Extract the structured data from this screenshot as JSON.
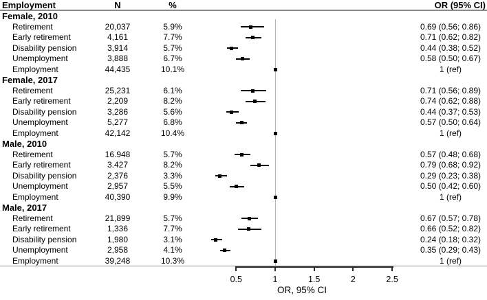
{
  "columns": {
    "employment": "Employment",
    "n": "N",
    "percent": "%",
    "or_ci": "OR (95% CI)"
  },
  "axis": {
    "label": "OR, 95% CI",
    "reference_value": 1,
    "ticks": [
      {
        "value": 0.5,
        "label": "0.5"
      },
      {
        "value": 1,
        "label": "1"
      },
      {
        "value": 1.5,
        "label": "1.5"
      },
      {
        "value": 2,
        "label": "2"
      },
      {
        "value": 2.5,
        "label": "2.5"
      }
    ]
  },
  "chart_data": {
    "type": "scatter",
    "variant": "forest-plot",
    "title": "",
    "xlabel": "OR, 95% CI",
    "xticks": [
      0.5,
      1,
      1.5,
      2,
      2.5
    ],
    "xlim": [
      0.15,
      2.7
    ],
    "reference_line": 1,
    "legend": "none",
    "grid": false,
    "columns": [
      "Employment",
      "N",
      "%",
      "OR (95% CI)"
    ],
    "groups": [
      {
        "label": "Female, 2010",
        "rows": [
          {
            "label": "Retirement",
            "n": "20,037",
            "pct": "5.9%",
            "or": 0.69,
            "ci_low": 0.56,
            "ci_high": 0.86,
            "or_text": "0.69 (0.56; 0.86)"
          },
          {
            "label": "Early retirement",
            "n": "4,161",
            "pct": "7.7%",
            "or": 0.71,
            "ci_low": 0.62,
            "ci_high": 0.82,
            "or_text": "0.71 (0.62; 0.82)"
          },
          {
            "label": "Disability pension",
            "n": "3,914",
            "pct": "5.7%",
            "or": 0.44,
            "ci_low": 0.38,
            "ci_high": 0.52,
            "or_text": "0.44 (0.38; 0.52)"
          },
          {
            "label": "Unemployment",
            "n": "3,888",
            "pct": "6.7%",
            "or": 0.58,
            "ci_low": 0.5,
            "ci_high": 0.67,
            "or_text": "0.58 (0.50; 0.67)"
          },
          {
            "label": "Employment",
            "n": "44,435",
            "pct": "10.1%",
            "or": 1,
            "ci_low": null,
            "ci_high": null,
            "or_text": "1 (ref)"
          }
        ]
      },
      {
        "label": "Female, 2017",
        "rows": [
          {
            "label": "Retirement",
            "n": "25,231",
            "pct": "6.1%",
            "or": 0.71,
            "ci_low": 0.56,
            "ci_high": 0.89,
            "or_text": "0.71 (0.56; 0.89)"
          },
          {
            "label": "Early retirement",
            "n": "2,209",
            "pct": "8.2%",
            "or": 0.74,
            "ci_low": 0.62,
            "ci_high": 0.88,
            "or_text": "0.74 (0.62; 0.88)"
          },
          {
            "label": "Disability pension",
            "n": "3,286",
            "pct": "5.6%",
            "or": 0.44,
            "ci_low": 0.37,
            "ci_high": 0.53,
            "or_text": "0.44 (0.37; 0.53)"
          },
          {
            "label": "Unemployment",
            "n": "5,277",
            "pct": "6.8%",
            "or": 0.57,
            "ci_low": 0.5,
            "ci_high": 0.64,
            "or_text": "0.57 (0.50; 0.64)"
          },
          {
            "label": "Employment",
            "n": "42,142",
            "pct": "10.4%",
            "or": 1,
            "ci_low": null,
            "ci_high": null,
            "or_text": "1 (ref)"
          }
        ]
      },
      {
        "label": "Male, 2010",
        "rows": [
          {
            "label": "Retirement",
            "n": "16.948",
            "pct": "5.7%",
            "or": 0.57,
            "ci_low": 0.48,
            "ci_high": 0.68,
            "or_text": "0.57 (0.48; 0.68)"
          },
          {
            "label": "Early retirement",
            "n": "3.427",
            "pct": "8.2%",
            "or": 0.79,
            "ci_low": 0.68,
            "ci_high": 0.92,
            "or_text": "0.79 (0.68; 0.92)"
          },
          {
            "label": "Disability pension",
            "n": "2,376",
            "pct": "3.3%",
            "or": 0.29,
            "ci_low": 0.23,
            "ci_high": 0.38,
            "or_text": "0.29 (0.23; 0.38)"
          },
          {
            "label": "Unemployment",
            "n": "2,957",
            "pct": "5.5%",
            "or": 0.5,
            "ci_low": 0.42,
            "ci_high": 0.6,
            "or_text": "0.50 (0.42; 0.60)"
          },
          {
            "label": "Employment",
            "n": "40,390",
            "pct": "9.9%",
            "or": 1,
            "ci_low": null,
            "ci_high": null,
            "or_text": "1 (ref)"
          }
        ]
      },
      {
        "label": "Male, 2017",
        "rows": [
          {
            "label": "Retirement",
            "n": "21,899",
            "pct": "5.7%",
            "or": 0.67,
            "ci_low": 0.57,
            "ci_high": 0.78,
            "or_text": "0.67 (0.57; 0.78)"
          },
          {
            "label": "Early retirement",
            "n": "1,336",
            "pct": "7.7%",
            "or": 0.66,
            "ci_low": 0.52,
            "ci_high": 0.82,
            "or_text": "0.66 (0.52; 0.82)"
          },
          {
            "label": "Disability pension",
            "n": "1,980",
            "pct": "3.1%",
            "or": 0.24,
            "ci_low": 0.18,
            "ci_high": 0.32,
            "or_text": "0.24 (0.18; 0.32)"
          },
          {
            "label": "Unemployment",
            "n": "2,958",
            "pct": "4.1%",
            "or": 0.35,
            "ci_low": 0.29,
            "ci_high": 0.43,
            "or_text": "0.35 (0.29; 0.43)"
          },
          {
            "label": "Employment",
            "n": "39,248",
            "pct": "10.3%",
            "or": 1,
            "ci_low": null,
            "ci_high": null,
            "or_text": "1 (ref)"
          }
        ]
      }
    ]
  }
}
